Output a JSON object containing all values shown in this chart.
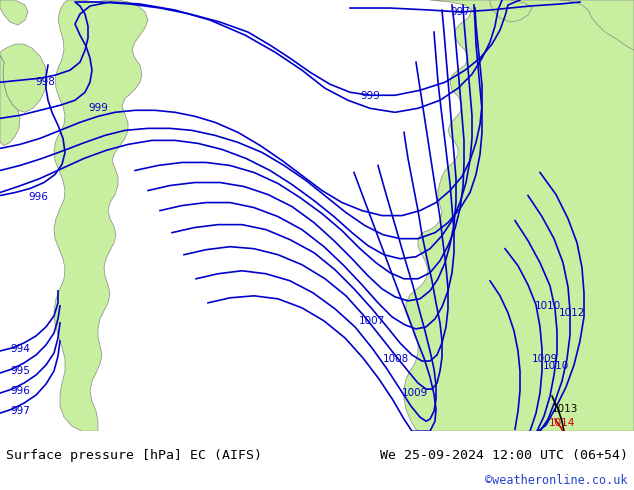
{
  "title_left": "Surface pressure [hPa] EC (AIFS)",
  "title_right": "We 25-09-2024 12:00 UTC (06+54)",
  "credit": "©weatheronline.co.uk",
  "background_sea": "#d8d8d8",
  "background_land": "#c8eea0",
  "contour_color_blue": "#0000cc",
  "contour_color_red": "#cc0000",
  "contour_color_black": "#000000",
  "label_color_blue": "#0000cc",
  "border_color": "#888888",
  "title_fontsize": 10,
  "credit_color": "#2244cc",
  "figsize": [
    6.34,
    4.9
  ],
  "dpi": 100
}
